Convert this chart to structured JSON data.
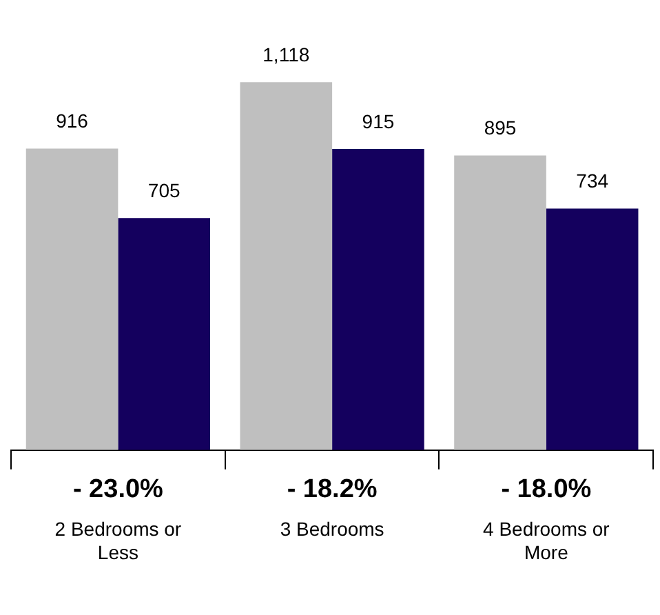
{
  "chart_data": {
    "type": "bar",
    "categories": [
      "2 Bedrooms or Less",
      "3 Bedrooms",
      "4 Bedrooms or More"
    ],
    "series": [
      {
        "color": "#bfbfbf",
        "values": [
          916,
          1118,
          895
        ],
        "value_labels": [
          "916",
          "1,118",
          "895"
        ]
      },
      {
        "color": "#14005e",
        "values": [
          705,
          915,
          734
        ],
        "value_labels": [
          "705",
          "915",
          "734"
        ]
      }
    ],
    "grid": false,
    "legend": false,
    "annotations": [
      "- 23.0%",
      "- 18.2%",
      "- 18.0%"
    ]
  }
}
